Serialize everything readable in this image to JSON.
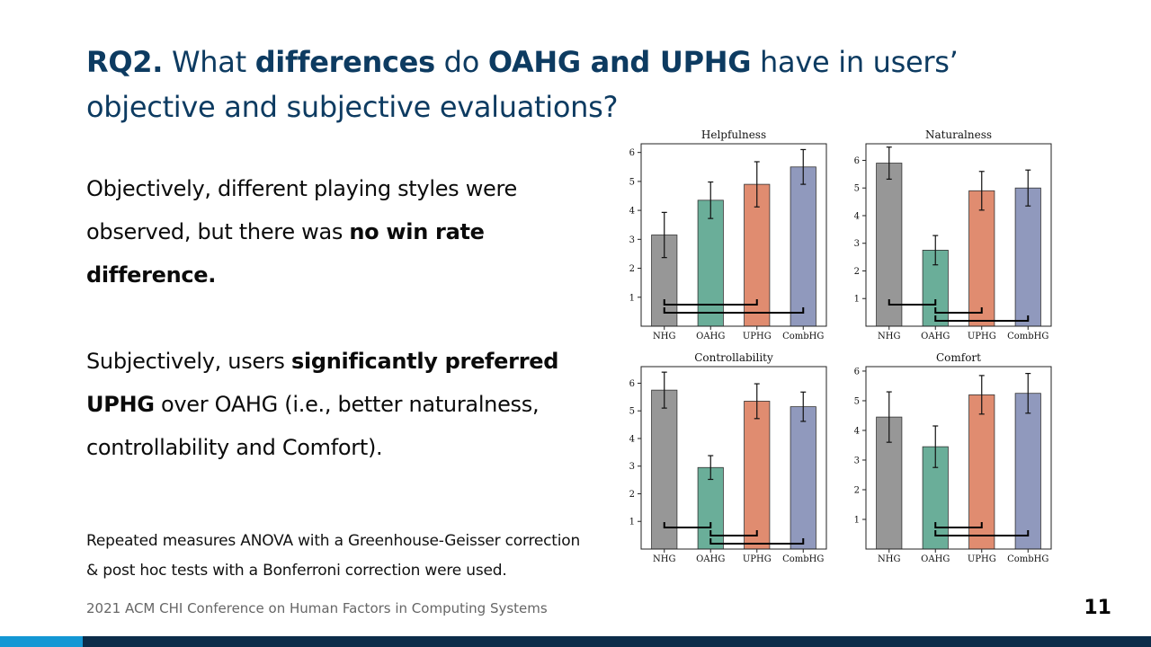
{
  "slide": {
    "title_lead": "RQ2.",
    "title_t1": " What ",
    "title_b1": "differences",
    "title_t2": " do ",
    "title_b2": "OAHG and UPHG",
    "title_t3": " have in users’ objective and subjective evaluations?",
    "p1_text": "Objectively, different playing styles were observed, but there was ",
    "p1_bold": "no win rate difference.",
    "p2_text": "Subjectively, users ",
    "p2_bold": "significantly preferred UPHG",
    "p2_rest": " over OAHG (i.e., better naturalness, controllability and Comfort).",
    "note_line1": "Repeated measures ANOVA with a Greenhouse-Geisser correction",
    "note_line2": "& post hoc tests with a Bonferroni correction were used.",
    "footer": "2021 ACM CHI Conference on Human Factors in Computing Systems",
    "page_number": "11"
  },
  "colors": {
    "title": "#0d3b61",
    "accent_blue": "#1497d4",
    "footer_bar": "#0c2d4a",
    "NHG": "#979797",
    "OAHG": "#6aae99",
    "UPHG": "#e08c70",
    "CombHG": "#9099bd"
  },
  "chart_data": [
    {
      "type": "bar",
      "title": "Helpfulness",
      "categories": [
        "NHG",
        "OAHG",
        "UPHG",
        "CombHG"
      ],
      "values": [
        3.15,
        4.35,
        4.9,
        5.5
      ],
      "errors": [
        0.78,
        0.63,
        0.78,
        0.6
      ],
      "ylim": [
        0,
        6.3
      ],
      "yticks": [
        1,
        2,
        3,
        4,
        5,
        6
      ],
      "significance_pairs": [
        [
          0,
          2
        ],
        [
          0,
          3
        ]
      ]
    },
    {
      "type": "bar",
      "title": "Naturalness",
      "categories": [
        "NHG",
        "OAHG",
        "UPHG",
        "CombHG"
      ],
      "values": [
        5.9,
        2.75,
        4.9,
        5.0
      ],
      "errors": [
        0.58,
        0.53,
        0.7,
        0.65
      ],
      "ylim": [
        0,
        6.6
      ],
      "yticks": [
        1,
        2,
        3,
        4,
        5,
        6
      ],
      "significance_pairs": [
        [
          0,
          1
        ],
        [
          1,
          2
        ],
        [
          1,
          3
        ]
      ]
    },
    {
      "type": "bar",
      "title": "Controllability",
      "categories": [
        "NHG",
        "OAHG",
        "UPHG",
        "CombHG"
      ],
      "values": [
        5.75,
        2.95,
        5.35,
        5.15
      ],
      "errors": [
        0.65,
        0.43,
        0.63,
        0.53
      ],
      "ylim": [
        0,
        6.6
      ],
      "yticks": [
        1,
        2,
        3,
        4,
        5,
        6
      ],
      "significance_pairs": [
        [
          0,
          1
        ],
        [
          1,
          2
        ],
        [
          1,
          3
        ]
      ]
    },
    {
      "type": "bar",
      "title": "Comfort",
      "categories": [
        "NHG",
        "OAHG",
        "UPHG",
        "CombHG"
      ],
      "values": [
        4.45,
        3.45,
        5.2,
        5.25
      ],
      "errors": [
        0.85,
        0.7,
        0.65,
        0.67
      ],
      "ylim": [
        0,
        6.15
      ],
      "yticks": [
        1,
        2,
        3,
        4,
        5,
        6
      ],
      "significance_pairs": [
        [
          1,
          2
        ],
        [
          1,
          3
        ]
      ]
    }
  ]
}
